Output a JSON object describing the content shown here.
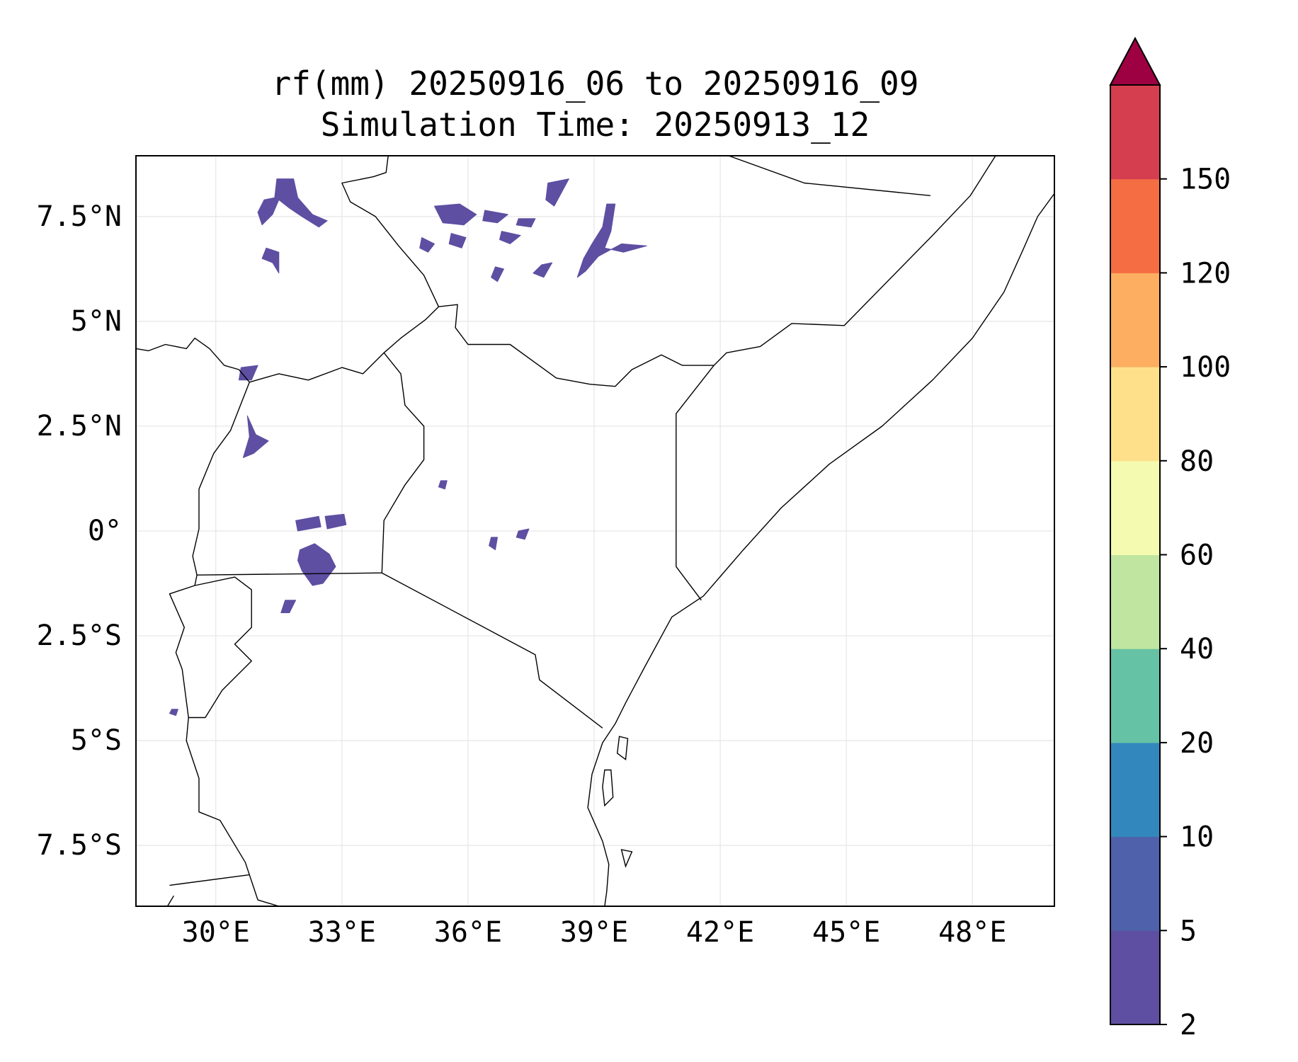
{
  "title": {
    "line1": "rf(mm) 20250916_06 to 20250916_09",
    "line2": "Simulation Time: 20250913_12"
  },
  "map": {
    "lon_range": [
      28.1,
      49.95
    ],
    "lat_range": [
      -8.95,
      8.95
    ],
    "x_ticks": [
      {
        "value": 30,
        "label": "30°E"
      },
      {
        "value": 33,
        "label": "33°E"
      },
      {
        "value": 36,
        "label": "36°E"
      },
      {
        "value": 39,
        "label": "39°E"
      },
      {
        "value": 42,
        "label": "42°E"
      },
      {
        "value": 45,
        "label": "45°E"
      },
      {
        "value": 48,
        "label": "48°E"
      }
    ],
    "y_ticks": [
      {
        "value": 7.5,
        "label": "7.5°N"
      },
      {
        "value": 5,
        "label": "5°N"
      },
      {
        "value": 2.5,
        "label": "2.5°N"
      },
      {
        "value": 0,
        "label": "0°"
      },
      {
        "value": -2.5,
        "label": "2.5°S"
      },
      {
        "value": -5,
        "label": "5°S"
      },
      {
        "value": -7.5,
        "label": "7.5°S"
      }
    ],
    "grid": true,
    "rain_color": "#5e4fa2",
    "rain_areas": [
      {
        "name": "south-sudan-west-cluster",
        "points": [
          [
            31.45,
            8.4
          ],
          [
            31.85,
            8.4
          ],
          [
            31.95,
            7.95
          ],
          [
            32.3,
            7.55
          ],
          [
            32.65,
            7.4
          ],
          [
            32.45,
            7.25
          ],
          [
            32.05,
            7.5
          ],
          [
            31.75,
            7.7
          ],
          [
            31.5,
            7.9
          ],
          [
            31.35,
            7.55
          ],
          [
            31.1,
            7.3
          ],
          [
            31.0,
            7.6
          ],
          [
            31.15,
            7.9
          ],
          [
            31.4,
            7.95
          ]
        ]
      },
      {
        "name": "south-sudan-west-lobe",
        "points": [
          [
            31.2,
            6.75
          ],
          [
            31.5,
            6.65
          ],
          [
            31.5,
            6.15
          ],
          [
            31.35,
            6.4
          ],
          [
            31.1,
            6.5
          ]
        ]
      },
      {
        "name": "south-sudan-east-1",
        "points": [
          [
            35.2,
            7.75
          ],
          [
            35.8,
            7.8
          ],
          [
            36.2,
            7.55
          ],
          [
            35.9,
            7.3
          ],
          [
            35.4,
            7.35
          ]
        ]
      },
      {
        "name": "south-sudan-east-2",
        "points": [
          [
            36.4,
            7.65
          ],
          [
            36.95,
            7.55
          ],
          [
            36.7,
            7.35
          ],
          [
            36.35,
            7.4
          ]
        ]
      },
      {
        "name": "south-sudan-east-3",
        "points": [
          [
            37.2,
            7.45
          ],
          [
            37.6,
            7.45
          ],
          [
            37.5,
            7.25
          ],
          [
            37.15,
            7.3
          ]
        ]
      },
      {
        "name": "south-sudan-east-4",
        "points": [
          [
            37.9,
            8.3
          ],
          [
            38.4,
            8.4
          ],
          [
            38.05,
            7.75
          ],
          [
            37.85,
            7.9
          ]
        ]
      },
      {
        "name": "south-sudan-east-5",
        "points": [
          [
            35.6,
            7.1
          ],
          [
            35.95,
            7.0
          ],
          [
            35.85,
            6.75
          ],
          [
            35.55,
            6.85
          ]
        ]
      },
      {
        "name": "south-sudan-east-6",
        "points": [
          [
            34.9,
            7.0
          ],
          [
            35.2,
            6.85
          ],
          [
            35.05,
            6.65
          ],
          [
            34.85,
            6.75
          ]
        ]
      },
      {
        "name": "south-sudan-east-7",
        "points": [
          [
            36.8,
            7.15
          ],
          [
            37.25,
            7.05
          ],
          [
            37.0,
            6.85
          ],
          [
            36.75,
            6.95
          ]
        ]
      },
      {
        "name": "ethiopia-southwest-band",
        "points": [
          [
            39.3,
            7.8
          ],
          [
            39.2,
            7.25
          ],
          [
            38.95,
            6.85
          ],
          [
            38.75,
            6.5
          ],
          [
            38.6,
            6.05
          ],
          [
            38.8,
            6.2
          ],
          [
            39.1,
            6.55
          ],
          [
            39.65,
            6.85
          ],
          [
            40.25,
            6.8
          ],
          [
            39.7,
            6.65
          ],
          [
            39.25,
            6.75
          ],
          [
            39.4,
            7.15
          ],
          [
            39.5,
            7.8
          ]
        ]
      },
      {
        "name": "ethiopia-south-1",
        "points": [
          [
            37.75,
            6.35
          ],
          [
            38.0,
            6.4
          ],
          [
            37.8,
            6.05
          ],
          [
            37.55,
            6.15
          ]
        ]
      },
      {
        "name": "ethiopia-south-2",
        "points": [
          [
            36.65,
            6.3
          ],
          [
            36.85,
            6.25
          ],
          [
            36.7,
            5.95
          ],
          [
            36.55,
            6.05
          ]
        ]
      },
      {
        "name": "uganda-west-strip",
        "points": [
          [
            30.75,
            2.75
          ],
          [
            30.95,
            2.3
          ],
          [
            31.25,
            2.15
          ],
          [
            30.9,
            1.85
          ],
          [
            30.65,
            1.75
          ],
          [
            30.8,
            2.25
          ]
        ]
      },
      {
        "name": "uganda-border-north",
        "points": [
          [
            30.6,
            3.9
          ],
          [
            31.0,
            3.95
          ],
          [
            30.85,
            3.6
          ],
          [
            30.55,
            3.6
          ]
        ]
      },
      {
        "name": "lake-victoria-north-1",
        "points": [
          [
            31.9,
            0.25
          ],
          [
            32.45,
            0.35
          ],
          [
            32.5,
            0.1
          ],
          [
            31.95,
            0.0
          ]
        ]
      },
      {
        "name": "lake-victoria-north-2",
        "points": [
          [
            32.6,
            0.35
          ],
          [
            33.05,
            0.4
          ],
          [
            33.1,
            0.15
          ],
          [
            32.65,
            0.05
          ]
        ]
      },
      {
        "name": "lake-victoria-west-blob",
        "points": [
          [
            32.0,
            -0.45
          ],
          [
            32.35,
            -0.3
          ],
          [
            32.7,
            -0.55
          ],
          [
            32.85,
            -0.85
          ],
          [
            32.55,
            -1.25
          ],
          [
            32.3,
            -1.3
          ],
          [
            32.05,
            -0.95
          ],
          [
            31.95,
            -0.7
          ]
        ]
      },
      {
        "name": "west-tanzania-1",
        "points": [
          [
            31.65,
            -1.65
          ],
          [
            31.9,
            -1.65
          ],
          [
            31.75,
            -1.95
          ],
          [
            31.55,
            -1.95
          ]
        ]
      },
      {
        "name": "kenya-small-1",
        "points": [
          [
            35.35,
            1.2
          ],
          [
            35.5,
            1.2
          ],
          [
            35.45,
            1.0
          ],
          [
            35.3,
            1.05
          ]
        ]
      },
      {
        "name": "kenya-small-2",
        "points": [
          [
            36.55,
            -0.15
          ],
          [
            36.7,
            -0.15
          ],
          [
            36.65,
            -0.45
          ],
          [
            36.5,
            -0.35
          ]
        ]
      },
      {
        "name": "kenya-small-3",
        "points": [
          [
            37.2,
            0.0
          ],
          [
            37.45,
            0.05
          ],
          [
            37.35,
            -0.2
          ],
          [
            37.15,
            -0.15
          ]
        ]
      },
      {
        "name": "burundi-speck",
        "points": [
          [
            28.95,
            -4.25
          ],
          [
            29.1,
            -4.25
          ],
          [
            29.05,
            -4.4
          ],
          [
            28.9,
            -4.35
          ]
        ]
      }
    ],
    "boundaries": [
      {
        "name": "south-sudan-ethiopia-border",
        "points": [
          [
            34.1,
            8.95
          ],
          [
            34.05,
            8.55
          ],
          [
            33.75,
            8.45
          ],
          [
            33.0,
            8.3
          ],
          [
            33.2,
            7.85
          ],
          [
            33.8,
            7.5
          ],
          [
            34.35,
            6.8
          ],
          [
            34.95,
            6.1
          ],
          [
            35.3,
            5.35
          ],
          [
            35.75,
            5.4
          ],
          [
            35.7,
            4.85
          ],
          [
            36.0,
            4.45
          ],
          [
            37.0,
            4.45
          ],
          [
            38.1,
            3.65
          ],
          [
            38.9,
            3.5
          ],
          [
            39.5,
            3.45
          ],
          [
            39.9,
            3.85
          ],
          [
            40.6,
            4.2
          ],
          [
            41.1,
            3.95
          ],
          [
            41.85,
            3.95
          ],
          [
            42.15,
            4.25
          ],
          [
            42.95,
            4.4
          ],
          [
            43.7,
            4.95
          ],
          [
            44.95,
            4.9
          ],
          [
            47.05,
            7.05
          ],
          [
            47.95,
            8.0
          ],
          [
            48.55,
            8.95
          ]
        ]
      },
      {
        "name": "ethiopia-somaliland-line",
        "points": [
          [
            42.2,
            8.95
          ],
          [
            44.0,
            8.3
          ],
          [
            47.0,
            8.0
          ]
        ]
      },
      {
        "name": "kenya-somalia-border",
        "points": [
          [
            41.85,
            3.95
          ],
          [
            40.95,
            2.8
          ],
          [
            40.95,
            -0.85
          ],
          [
            41.55,
            -1.65
          ]
        ]
      },
      {
        "name": "uganda-south-sudan-border",
        "points": [
          [
            30.8,
            3.55
          ],
          [
            31.5,
            3.75
          ],
          [
            32.2,
            3.6
          ],
          [
            33.0,
            3.9
          ],
          [
            33.5,
            3.75
          ],
          [
            34.0,
            4.25
          ],
          [
            34.4,
            4.6
          ],
          [
            35.0,
            5.05
          ],
          [
            35.3,
            5.35
          ]
        ]
      },
      {
        "name": "uganda-kenya-border",
        "points": [
          [
            34.0,
            4.25
          ],
          [
            34.4,
            3.75
          ],
          [
            34.5,
            3.0
          ],
          [
            34.95,
            2.5
          ],
          [
            34.95,
            1.7
          ],
          [
            34.5,
            1.1
          ],
          [
            34.0,
            0.25
          ],
          [
            33.95,
            -1.0
          ]
        ]
      },
      {
        "name": "kenya-tanzania-border",
        "points": [
          [
            33.95,
            -1.0
          ],
          [
            37.6,
            -2.95
          ],
          [
            37.7,
            -3.55
          ],
          [
            39.2,
            -4.7
          ]
        ]
      },
      {
        "name": "uganda-tanzania-rwanda-border",
        "points": [
          [
            29.55,
            -1.05
          ],
          [
            33.95,
            -1.0
          ]
        ]
      },
      {
        "name": "uganda-drc-border",
        "points": [
          [
            30.8,
            3.55
          ],
          [
            30.35,
            2.4
          ],
          [
            29.95,
            1.85
          ],
          [
            29.6,
            1.0
          ],
          [
            29.6,
            0.05
          ],
          [
            29.45,
            -0.6
          ],
          [
            29.55,
            -1.05
          ],
          [
            29.5,
            -1.3
          ]
        ]
      },
      {
        "name": "rwanda-burundi-outline",
        "points": [
          [
            29.5,
            -1.3
          ],
          [
            30.45,
            -1.1
          ],
          [
            30.85,
            -1.4
          ],
          [
            30.85,
            -2.3
          ],
          [
            30.45,
            -2.7
          ],
          [
            30.85,
            -3.1
          ],
          [
            30.15,
            -3.8
          ],
          [
            29.75,
            -4.45
          ],
          [
            29.35,
            -4.45
          ],
          [
            29.2,
            -3.3
          ],
          [
            29.05,
            -2.9
          ],
          [
            29.25,
            -2.3
          ],
          [
            28.9,
            -1.5
          ],
          [
            29.5,
            -1.3
          ]
        ]
      },
      {
        "name": "drc-tanzania-lake-tanganyika",
        "points": [
          [
            29.35,
            -4.45
          ],
          [
            29.3,
            -5.0
          ],
          [
            29.6,
            -5.9
          ],
          [
            29.6,
            -6.7
          ],
          [
            30.1,
            -6.9
          ],
          [
            30.7,
            -7.9
          ],
          [
            30.9,
            -8.5
          ],
          [
            31.0,
            -8.8
          ],
          [
            31.5,
            -8.95
          ]
        ]
      },
      {
        "name": "zambia-tanzania-line",
        "points": [
          [
            28.9,
            -8.45
          ],
          [
            30.8,
            -8.2
          ]
        ]
      },
      {
        "name": "drc-central-african-line",
        "points": [
          [
            28.1,
            4.35
          ],
          [
            28.4,
            4.3
          ],
          [
            28.8,
            4.45
          ],
          [
            29.3,
            4.35
          ],
          [
            29.5,
            4.6
          ],
          [
            29.85,
            4.35
          ],
          [
            30.2,
            3.95
          ],
          [
            30.55,
            3.85
          ],
          [
            30.8,
            3.55
          ]
        ]
      },
      {
        "name": "drc-northwest-tail",
        "points": [
          [
            28.85,
            -8.95
          ],
          [
            29.0,
            -8.7
          ]
        ]
      }
    ],
    "coastline": [
      [
        39.25,
        -8.95
      ],
      [
        39.3,
        -8.6
      ],
      [
        39.35,
        -7.95
      ],
      [
        39.2,
        -7.4
      ],
      [
        38.85,
        -6.6
      ],
      [
        38.95,
        -5.8
      ],
      [
        39.2,
        -5.05
      ],
      [
        39.5,
        -4.6
      ],
      [
        39.75,
        -4.1
      ],
      [
        40.2,
        -3.25
      ],
      [
        40.85,
        -2.05
      ],
      [
        41.6,
        -1.55
      ],
      [
        42.55,
        -0.45
      ],
      [
        43.45,
        0.55
      ],
      [
        44.6,
        1.6
      ],
      [
        45.85,
        2.5
      ],
      [
        47.05,
        3.6
      ],
      [
        48.0,
        4.6
      ],
      [
        48.75,
        5.7
      ],
      [
        49.2,
        6.7
      ],
      [
        49.55,
        7.5
      ],
      [
        49.95,
        8.05
      ]
    ],
    "zanzibar": [
      [
        39.25,
        -5.7
      ],
      [
        39.4,
        -5.7
      ],
      [
        39.45,
        -6.35
      ],
      [
        39.25,
        -6.55
      ],
      [
        39.2,
        -6.1
      ]
    ],
    "pemba": [
      [
        39.6,
        -4.9
      ],
      [
        39.8,
        -4.95
      ],
      [
        39.75,
        -5.45
      ],
      [
        39.55,
        -5.3
      ]
    ],
    "mafia": [
      [
        39.65,
        -7.6
      ],
      [
        39.9,
        -7.65
      ],
      [
        39.75,
        -8.0
      ]
    ]
  },
  "colorbar": {
    "levels": [
      2,
      5,
      10,
      20,
      40,
      60,
      80,
      100,
      120,
      150
    ],
    "tick_labels": [
      "2",
      "5",
      "10",
      "20",
      "40",
      "60",
      "80",
      "100",
      "120",
      "150"
    ],
    "colors": [
      "#5e4fa2",
      "#4f61aa",
      "#3288bd",
      "#66c2a5",
      "#bfe5a0",
      "#f4fbb0",
      "#fee08b",
      "#fdae61",
      "#f46d43",
      "#d53e4f"
    ],
    "extend_color": "#9e0142"
  }
}
